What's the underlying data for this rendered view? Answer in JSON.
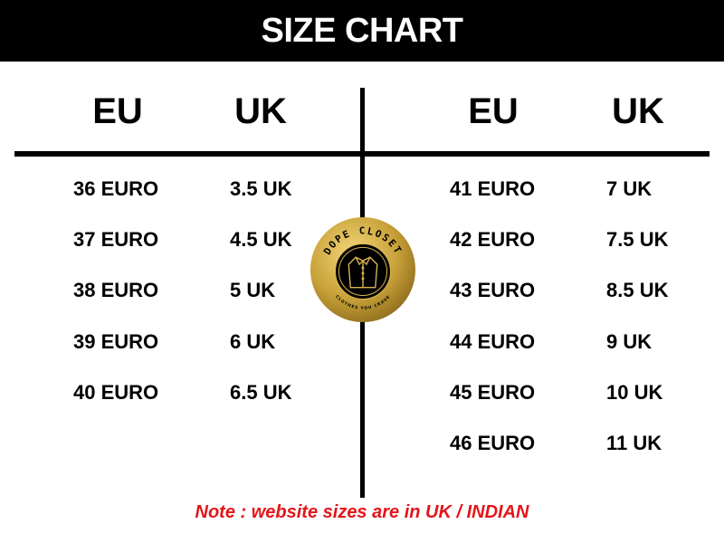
{
  "title": "SIZE CHART",
  "headers": {
    "left_eu": "EU",
    "left_uk": "UK",
    "right_eu": "EU",
    "right_uk": "UK"
  },
  "left_rows": [
    {
      "eu": "36 EURO",
      "uk": "3.5 UK"
    },
    {
      "eu": "37 EURO",
      "uk": "4.5 UK"
    },
    {
      "eu": "38 EURO",
      "uk": "5 UK"
    },
    {
      "eu": "39 EURO",
      "uk": "6 UK"
    },
    {
      "eu": "40 EURO",
      "uk": "6.5 UK"
    }
  ],
  "right_rows": [
    {
      "eu": "41 EURO",
      "uk": "7 UK"
    },
    {
      "eu": "42 EURO",
      "uk": "7.5 UK"
    },
    {
      "eu": "43 EURO",
      "uk": "8.5 UK"
    },
    {
      "eu": "44 EURO",
      "uk": "9 UK"
    },
    {
      "eu": "45 EURO",
      "uk": "10 UK"
    },
    {
      "eu": "46 EURO",
      "uk": "11 UK"
    }
  ],
  "note": "Note : website sizes are in UK / INDIAN",
  "logo": {
    "brand": "DOPE CLOSET",
    "tagline": "CLOTHES YOU CRAVE",
    "icon": "shirt-icon"
  },
  "colors": {
    "banner": "#000000",
    "note": "#e3151a",
    "logo_gold": "#c9a23a"
  }
}
